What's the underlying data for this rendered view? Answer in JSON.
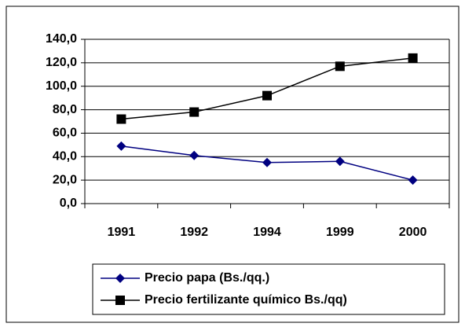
{
  "chart_data": {
    "type": "line",
    "categories": [
      "1991",
      "1992",
      "1994",
      "1999",
      "2000"
    ],
    "series": [
      {
        "name": "Precio papa (Bs./qq.)",
        "color": "#000080",
        "marker": "diamond",
        "values": [
          49,
          41,
          35,
          36,
          20
        ]
      },
      {
        "name": "Precio fertilizante químico Bs./qq)",
        "color": "#000000",
        "marker": "square",
        "values": [
          72,
          78,
          92,
          117,
          124
        ]
      }
    ],
    "ylim": [
      0,
      140
    ],
    "yticks": [
      {
        "value": 0,
        "label": "0,0"
      },
      {
        "value": 20,
        "label": "20,0"
      },
      {
        "value": 40,
        "label": "40,0"
      },
      {
        "value": 60,
        "label": "60,0"
      },
      {
        "value": 80,
        "label": "80,0"
      },
      {
        "value": 100,
        "label": "100,0"
      },
      {
        "value": 120,
        "label": "120,0"
      },
      {
        "value": 140,
        "label": "140,0"
      }
    ],
    "grid": true,
    "legend": "bottom"
  }
}
